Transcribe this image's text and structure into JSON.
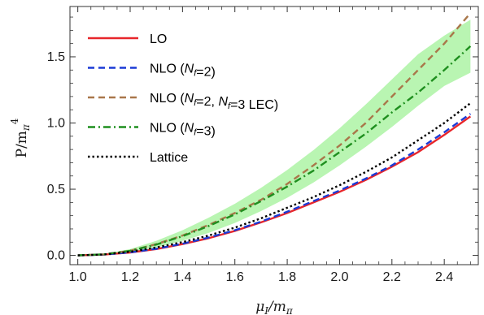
{
  "chart_data": {
    "type": "line",
    "title": "",
    "xlabel": "μI/mπ",
    "ylabel": "P/mπ4",
    "xlim": [
      0.97,
      2.53
    ],
    "ylim": [
      -0.07,
      1.88
    ],
    "x_ticks": [
      "1.0",
      "1.2",
      "1.4",
      "1.6",
      "1.8",
      "2.0",
      "2.2",
      "2.4"
    ],
    "y_ticks": [
      "0.0",
      "0.5",
      "1.0",
      "1.5"
    ],
    "legend_position": "top-left",
    "grid": false,
    "x": [
      1.0,
      1.1,
      1.2,
      1.3,
      1.4,
      1.5,
      1.6,
      1.7,
      1.8,
      1.9,
      2.0,
      2.1,
      2.2,
      2.3,
      2.4,
      2.5
    ],
    "band": {
      "name": "NLO (Nf=3) uncertainty",
      "color": "#b9f5b2",
      "lower": [
        0.0,
        0.005,
        0.025,
        0.06,
        0.11,
        0.17,
        0.245,
        0.335,
        0.435,
        0.55,
        0.68,
        0.82,
        0.97,
        1.13,
        1.28,
        1.38
      ],
      "upper": [
        0.0,
        0.011,
        0.048,
        0.11,
        0.19,
        0.285,
        0.39,
        0.51,
        0.645,
        0.795,
        0.96,
        1.14,
        1.33,
        1.52,
        1.66,
        1.78
      ]
    },
    "series": [
      {
        "name": "LO",
        "color": "#e8262b",
        "dash": "solid",
        "values": [
          0.0,
          0.006,
          0.022,
          0.048,
          0.085,
          0.13,
          0.185,
          0.25,
          0.32,
          0.4,
          0.48,
          0.57,
          0.67,
          0.78,
          0.91,
          1.05
        ]
      },
      {
        "name": "NLO (Nf=2)",
        "color": "#1b3bd6",
        "dash": "dashed",
        "values": [
          0.0,
          0.006,
          0.023,
          0.05,
          0.088,
          0.135,
          0.19,
          0.255,
          0.33,
          0.41,
          0.49,
          0.58,
          0.68,
          0.8,
          0.93,
          1.07
        ]
      },
      {
        "name": "NLO (Nf=2, Nf=3 LEC)",
        "color": "#a9774a",
        "dash": "dashed",
        "values": [
          0.0,
          0.008,
          0.035,
          0.085,
          0.15,
          0.23,
          0.32,
          0.42,
          0.54,
          0.68,
          0.83,
          1.0,
          1.2,
          1.4,
          1.6,
          1.83
        ]
      },
      {
        "name": "NLO (Nf=3)",
        "color": "#1f8f1f",
        "dash": "dashdot",
        "values": [
          0.0,
          0.008,
          0.035,
          0.082,
          0.145,
          0.222,
          0.31,
          0.41,
          0.52,
          0.64,
          0.78,
          0.92,
          1.08,
          1.23,
          1.4,
          1.58
        ]
      },
      {
        "name": "Lattice",
        "color": "#000000",
        "dash": "dotted",
        "values": [
          0.0,
          0.007,
          0.028,
          0.06,
          0.1,
          0.15,
          0.21,
          0.28,
          0.36,
          0.44,
          0.53,
          0.63,
          0.74,
          0.87,
          1.0,
          1.15
        ]
      }
    ]
  }
}
